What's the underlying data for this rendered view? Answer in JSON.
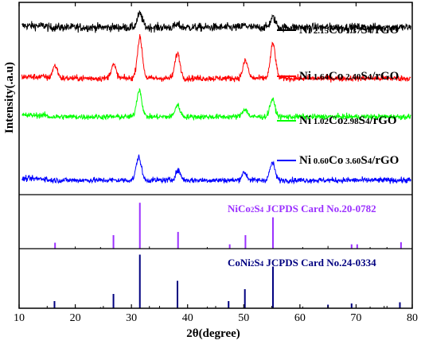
{
  "chart_data": {
    "type": "line",
    "xlabel": "2θ(degree)",
    "ylabel": "Intensity(.a.u)",
    "xlim": [
      10,
      80
    ],
    "xticks": [
      "10",
      "20",
      "30",
      "40",
      "50",
      "60",
      "70",
      "80"
    ],
    "grid": false,
    "legend_position": "right",
    "series": [
      {
        "name_parts": [
          "Ni",
          " 2.15",
          "Co",
          " 1.37",
          "S",
          "4",
          "/rGO"
        ],
        "color": "#000000",
        "baseline": 0.87,
        "noise": 0.03,
        "peaks": [
          [
            31.5,
            0.07
          ],
          [
            38.2,
            0.012
          ],
          [
            50.2,
            0.01
          ],
          [
            55.2,
            0.05
          ]
        ]
      },
      {
        "name_parts": [
          "Ni",
          " 1.64",
          "Co",
          " 2.40",
          "S",
          "4",
          "/rGO"
        ],
        "color": "#ff0000",
        "baseline": 0.605,
        "noise": 0.022,
        "peaks": [
          [
            16.4,
            0.065
          ],
          [
            26.8,
            0.07
          ],
          [
            31.5,
            0.21
          ],
          [
            38.2,
            0.13
          ],
          [
            50.3,
            0.09
          ],
          [
            55.2,
            0.18
          ]
        ]
      },
      {
        "name_parts": [
          "Ni",
          " 1.02",
          "Co",
          "2.98",
          "S",
          "4",
          "/rGO"
        ],
        "color": "#00ff00",
        "baseline": 0.405,
        "noise": 0.02,
        "peaks": [
          [
            31.4,
            0.14
          ],
          [
            38.2,
            0.06
          ],
          [
            50.2,
            0.04
          ],
          [
            55.1,
            0.09
          ]
        ]
      },
      {
        "name_parts": [
          "Ni",
          " 0.60",
          "Co",
          " 3.60",
          "S",
          "4",
          "/rGO"
        ],
        "color": "#0000ff",
        "baseline": 0.075,
        "noise": 0.02,
        "peaks": [
          [
            31.3,
            0.12
          ],
          [
            38.3,
            0.05
          ],
          [
            50.1,
            0.04
          ],
          [
            55.1,
            0.09
          ]
        ]
      }
    ],
    "reference_patterns": [
      {
        "name_parts": [
          "NiCo",
          "2",
          "S",
          "4"
        ],
        "card": "JCPDS Card No.20-0782",
        "color": "#9b30ff",
        "lines": [
          [
            16.4,
            0.11
          ],
          [
            26.8,
            0.25
          ],
          [
            31.5,
            0.85
          ],
          [
            38.3,
            0.31
          ],
          [
            47.5,
            0.08
          ],
          [
            50.3,
            0.25
          ],
          [
            55.2,
            0.58
          ],
          [
            69.2,
            0.08
          ],
          [
            70.2,
            0.08
          ],
          [
            78.0,
            0.12
          ]
        ],
        "minor_lines": [
          [
            20.0,
            0.04
          ],
          [
            24.5,
            0.03
          ],
          [
            33.2,
            0.04
          ],
          [
            43.5,
            0.03
          ],
          [
            60.5,
            0.03
          ],
          [
            65.0,
            0.05
          ],
          [
            72.5,
            0.03
          ],
          [
            75.5,
            0.03
          ]
        ]
      },
      {
        "name_parts": [
          "CoNi",
          "2",
          "S",
          "4"
        ],
        "card": "JCPDS Card No.24-0334",
        "color": "#000080",
        "lines": [
          [
            16.3,
            0.12
          ],
          [
            26.8,
            0.24
          ],
          [
            31.5,
            0.9
          ],
          [
            38.2,
            0.46
          ],
          [
            47.3,
            0.12
          ],
          [
            50.2,
            0.32
          ],
          [
            55.2,
            0.7
          ],
          [
            65.0,
            0.06
          ],
          [
            69.2,
            0.08
          ],
          [
            77.8,
            0.1
          ]
        ],
        "minor_lines": [
          [
            20.0,
            0.03
          ],
          [
            24.5,
            0.02
          ],
          [
            33.2,
            0.04
          ],
          [
            43.5,
            0.03
          ],
          [
            60.5,
            0.03
          ],
          [
            72.5,
            0.03
          ],
          [
            75.5,
            0.04
          ]
        ]
      }
    ]
  }
}
